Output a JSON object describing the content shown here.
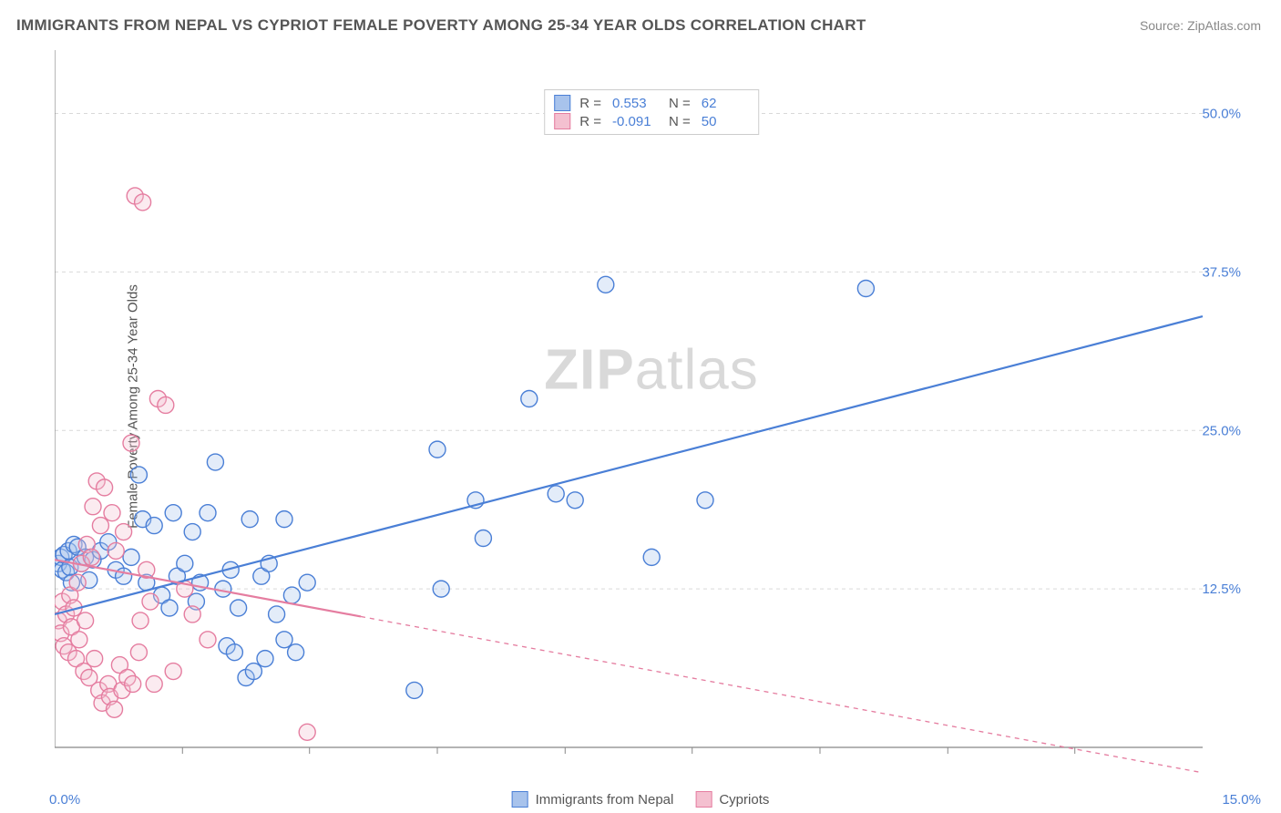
{
  "title": "IMMIGRANTS FROM NEPAL VS CYPRIOT FEMALE POVERTY AMONG 25-34 YEAR OLDS CORRELATION CHART",
  "source": "Source: ZipAtlas.com",
  "y_axis_label": "Female Poverty Among 25-34 Year Olds",
  "watermark_bold": "ZIP",
  "watermark_rest": "atlas",
  "chart": {
    "type": "scatter",
    "background_color": "#ffffff",
    "grid_color": "#d9d9d9",
    "axis_line_color": "#888888",
    "xlim": [
      0,
      15
    ],
    "ylim": [
      0,
      55
    ],
    "x_origin_label": "0.0%",
    "x_max_label": "15.0%",
    "y_tick_values": [
      12.5,
      25.0,
      37.5,
      50.0
    ],
    "y_tick_labels": [
      "12.5%",
      "25.0%",
      "37.5%",
      "50.0%"
    ],
    "x_minor_ticks": [
      1.67,
      3.33,
      5.0,
      6.67,
      8.33,
      10.0,
      11.67,
      13.33
    ],
    "marker_radius": 9,
    "marker_stroke_width": 1.4,
    "marker_fill_opacity": 0.32,
    "trend_line_width": 2.2,
    "series": [
      {
        "name": "Immigrants from Nepal",
        "color_stroke": "#4a7fd6",
        "color_fill": "#a8c3ec",
        "R": "0.553",
        "N": "62",
        "trend": {
          "x1": 0,
          "y1": 10.5,
          "x2": 15,
          "y2": 34.0,
          "dash_after_x": null
        },
        "points": [
          [
            0.05,
            14.5
          ],
          [
            0.08,
            15.0
          ],
          [
            0.1,
            14.0
          ],
          [
            0.12,
            15.2
          ],
          [
            0.15,
            13.8
          ],
          [
            0.18,
            15.5
          ],
          [
            0.2,
            14.2
          ],
          [
            0.22,
            13.0
          ],
          [
            0.25,
            16.0
          ],
          [
            0.3,
            15.8
          ],
          [
            0.35,
            14.5
          ],
          [
            0.4,
            15.0
          ],
          [
            0.45,
            13.2
          ],
          [
            0.5,
            14.8
          ],
          [
            0.6,
            15.5
          ],
          [
            0.7,
            16.2
          ],
          [
            0.8,
            14.0
          ],
          [
            0.9,
            13.5
          ],
          [
            1.0,
            15.0
          ],
          [
            1.1,
            21.5
          ],
          [
            1.15,
            18.0
          ],
          [
            1.2,
            13.0
          ],
          [
            1.3,
            17.5
          ],
          [
            1.4,
            12.0
          ],
          [
            1.5,
            11.0
          ],
          [
            1.55,
            18.5
          ],
          [
            1.6,
            13.5
          ],
          [
            1.7,
            14.5
          ],
          [
            1.8,
            17.0
          ],
          [
            1.85,
            11.5
          ],
          [
            1.9,
            13.0
          ],
          [
            2.0,
            18.5
          ],
          [
            2.1,
            22.5
          ],
          [
            2.2,
            12.5
          ],
          [
            2.25,
            8.0
          ],
          [
            2.3,
            14.0
          ],
          [
            2.35,
            7.5
          ],
          [
            2.4,
            11.0
          ],
          [
            2.5,
            5.5
          ],
          [
            2.55,
            18.0
          ],
          [
            2.6,
            6.0
          ],
          [
            2.7,
            13.5
          ],
          [
            2.75,
            7.0
          ],
          [
            2.8,
            14.5
          ],
          [
            2.9,
            10.5
          ],
          [
            3.0,
            8.5
          ],
          [
            3.0,
            18.0
          ],
          [
            3.1,
            12.0
          ],
          [
            3.15,
            7.5
          ],
          [
            3.3,
            13.0
          ],
          [
            4.7,
            4.5
          ],
          [
            5.0,
            23.5
          ],
          [
            5.05,
            12.5
          ],
          [
            5.5,
            19.5
          ],
          [
            5.6,
            16.5
          ],
          [
            6.2,
            27.5
          ],
          [
            6.55,
            20.0
          ],
          [
            6.8,
            19.5
          ],
          [
            7.2,
            36.5
          ],
          [
            7.8,
            15.0
          ],
          [
            8.5,
            19.5
          ],
          [
            10.6,
            36.2
          ]
        ]
      },
      {
        "name": "Cypriots",
        "color_stroke": "#e57da0",
        "color_fill": "#f4c0d0",
        "R": "-0.091",
        "N": "50",
        "trend": {
          "x1": 0,
          "y1": 14.8,
          "x2": 15,
          "y2": -2.0,
          "dash_after_x": 4.0
        },
        "points": [
          [
            0.05,
            10.0
          ],
          [
            0.08,
            9.0
          ],
          [
            0.1,
            11.5
          ],
          [
            0.12,
            8.0
          ],
          [
            0.15,
            10.5
          ],
          [
            0.18,
            7.5
          ],
          [
            0.2,
            12.0
          ],
          [
            0.22,
            9.5
          ],
          [
            0.25,
            11.0
          ],
          [
            0.28,
            7.0
          ],
          [
            0.3,
            13.0
          ],
          [
            0.32,
            8.5
          ],
          [
            0.35,
            14.5
          ],
          [
            0.38,
            6.0
          ],
          [
            0.4,
            10.0
          ],
          [
            0.42,
            16.0
          ],
          [
            0.45,
            5.5
          ],
          [
            0.48,
            15.0
          ],
          [
            0.5,
            19.0
          ],
          [
            0.52,
            7.0
          ],
          [
            0.55,
            21.0
          ],
          [
            0.58,
            4.5
          ],
          [
            0.6,
            17.5
          ],
          [
            0.62,
            3.5
          ],
          [
            0.65,
            20.5
          ],
          [
            0.7,
            5.0
          ],
          [
            0.72,
            4.0
          ],
          [
            0.75,
            18.5
          ],
          [
            0.78,
            3.0
          ],
          [
            0.8,
            15.5
          ],
          [
            0.85,
            6.5
          ],
          [
            0.88,
            4.5
          ],
          [
            0.9,
            17.0
          ],
          [
            0.95,
            5.5
          ],
          [
            1.0,
            24.0
          ],
          [
            1.02,
            5.0
          ],
          [
            1.05,
            43.5
          ],
          [
            1.1,
            7.5
          ],
          [
            1.12,
            10.0
          ],
          [
            1.15,
            43.0
          ],
          [
            1.2,
            14.0
          ],
          [
            1.25,
            11.5
          ],
          [
            1.3,
            5.0
          ],
          [
            1.35,
            27.5
          ],
          [
            1.45,
            27.0
          ],
          [
            1.55,
            6.0
          ],
          [
            1.7,
            12.5
          ],
          [
            1.8,
            10.5
          ],
          [
            2.0,
            8.5
          ],
          [
            3.3,
            1.2
          ]
        ]
      }
    ]
  },
  "legend_top": {
    "r_label": "R =",
    "n_label": "N ="
  },
  "legend_bottom": [
    {
      "label": "Immigrants from Nepal",
      "series": 0
    },
    {
      "label": "Cypriots",
      "series": 1
    }
  ]
}
